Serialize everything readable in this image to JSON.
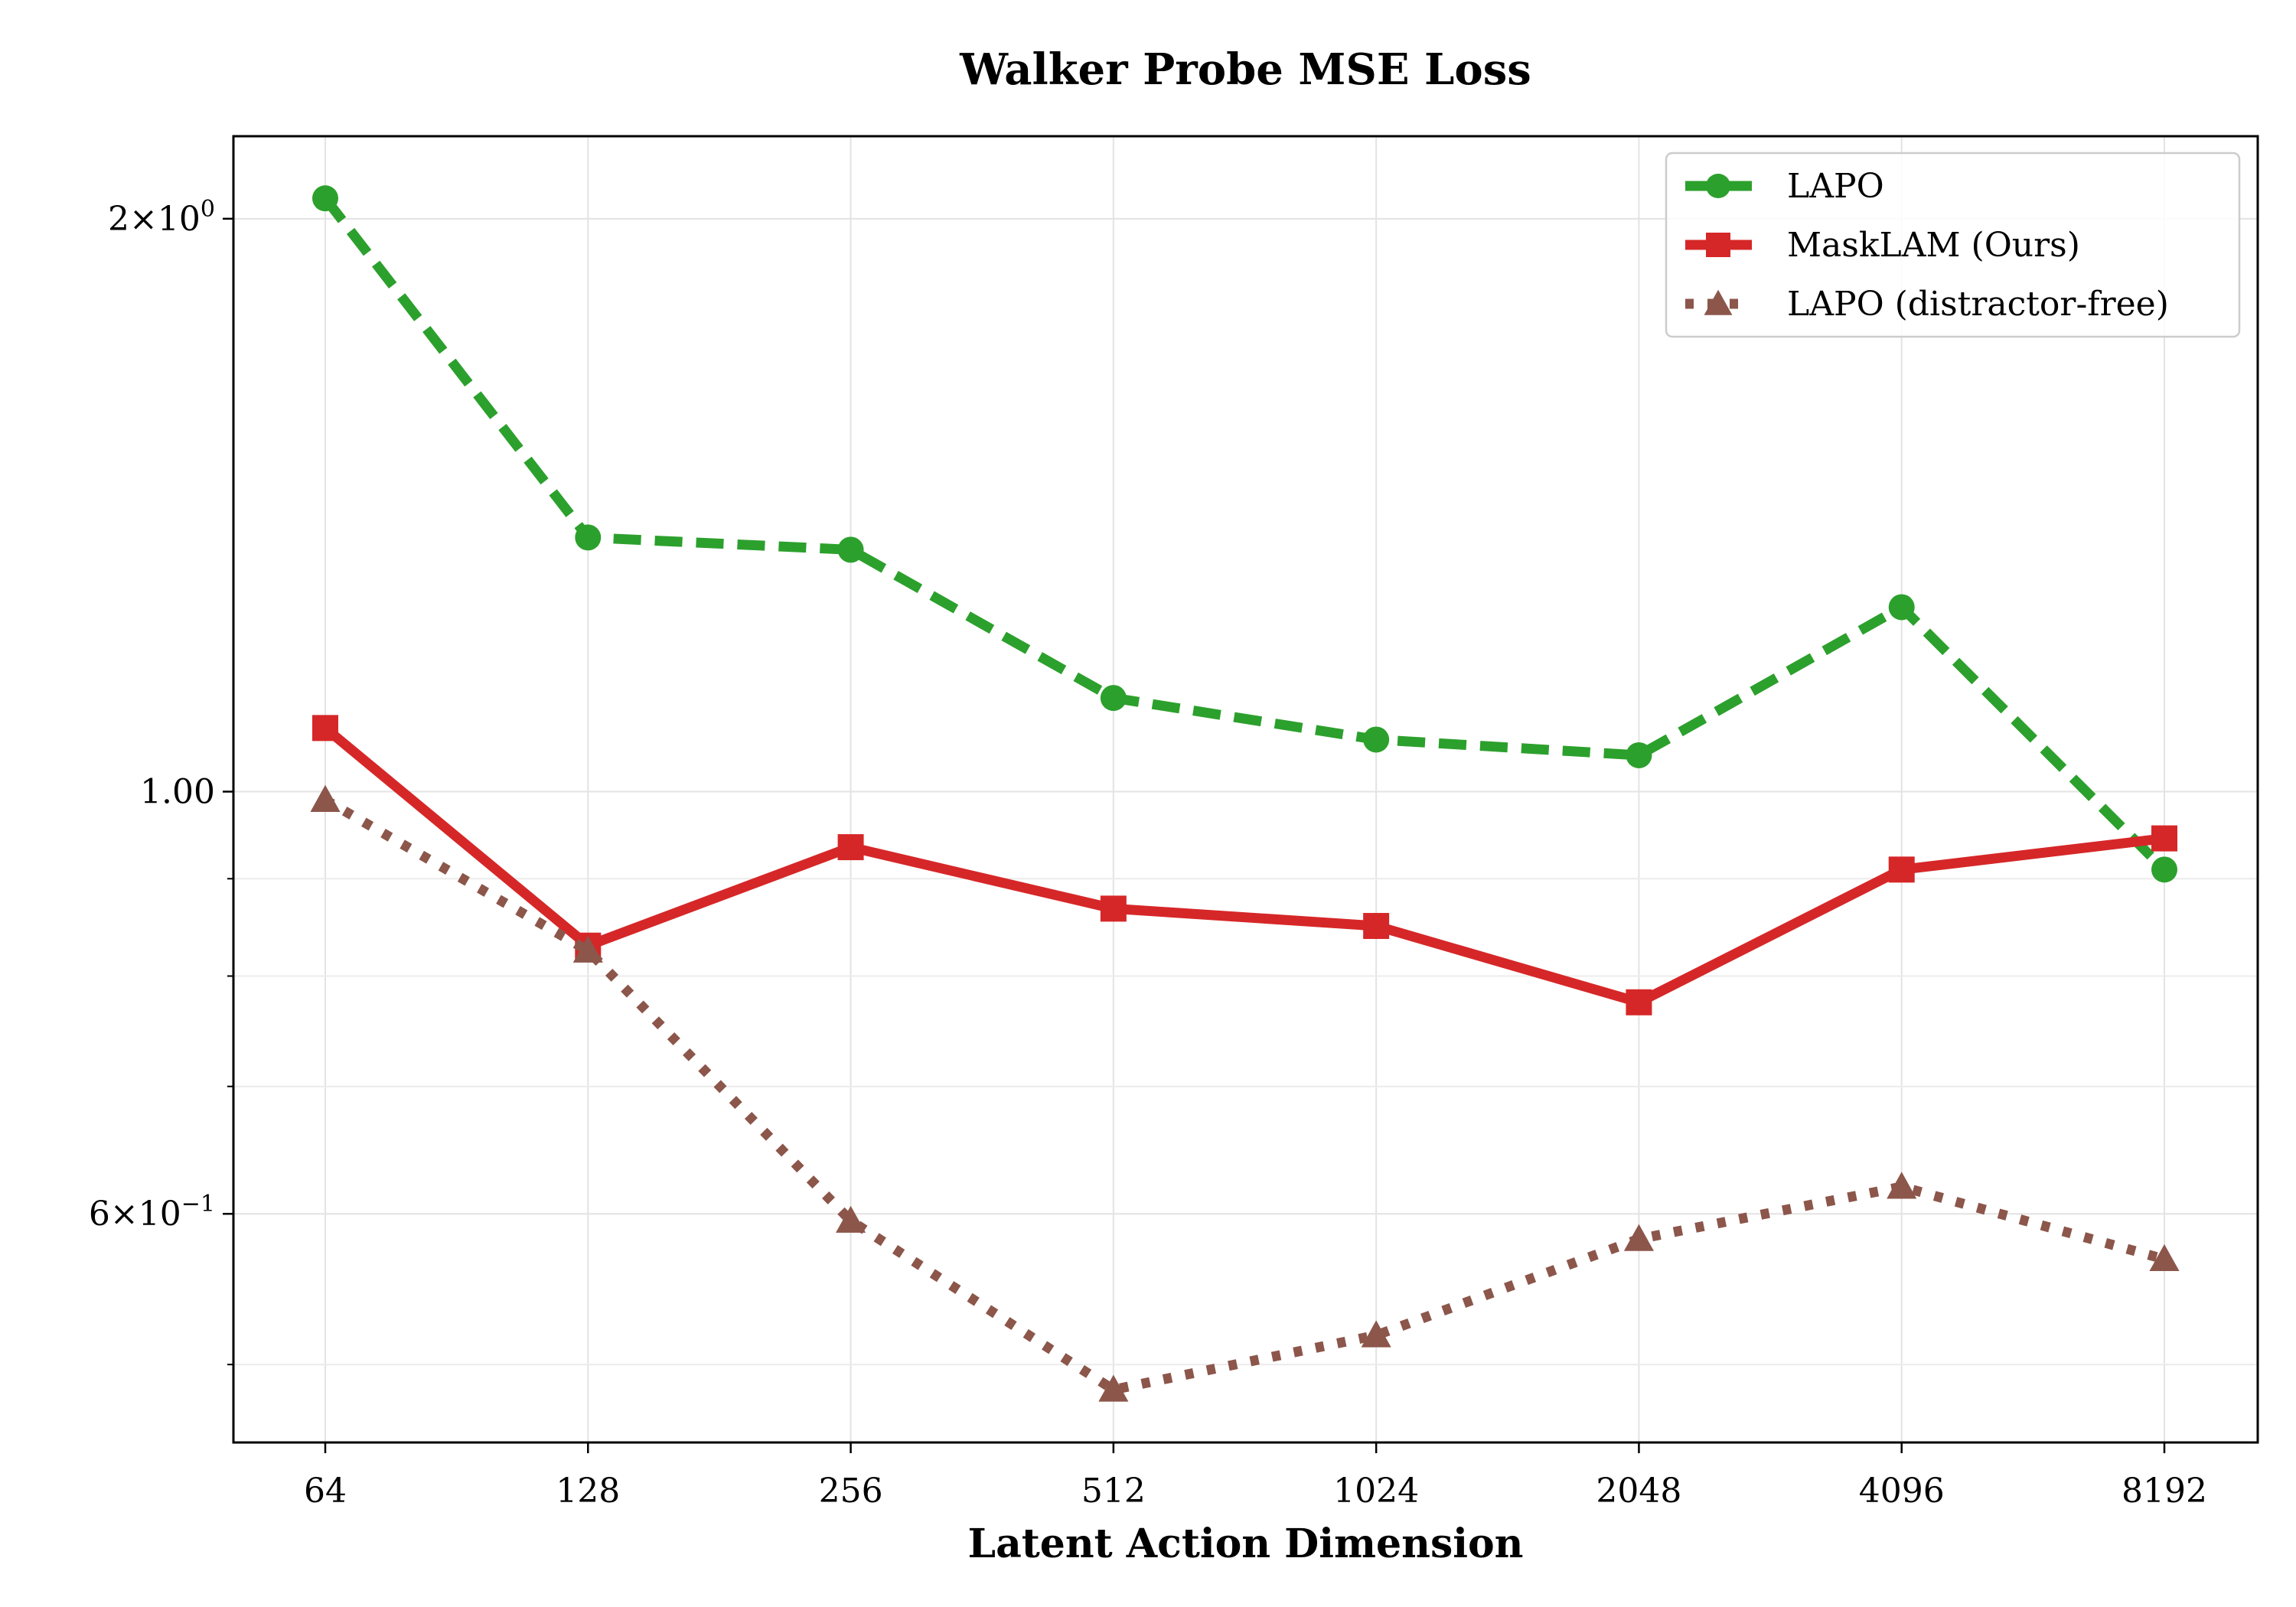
{
  "chart_data": {
    "type": "line",
    "title": "Walker Probe MSE Loss",
    "xlabel": "Latent Action Dimension",
    "ylabel": "",
    "x_scale": "log2",
    "y_scale": "log",
    "categories": [
      "64",
      "128",
      "256",
      "512",
      "1024",
      "2048",
      "4096",
      "8192"
    ],
    "ylim": [
      0.455,
      2.21
    ],
    "y_ticks": [
      {
        "value": 2.0,
        "base": "2",
        "pow": "0",
        "label": ""
      },
      {
        "value": 1.0,
        "base": "",
        "pow": "",
        "label": "1.00"
      },
      {
        "value": 0.6,
        "base": "6",
        "pow": "−1",
        "label": ""
      }
    ],
    "y_minor_ticks": [
      0.5,
      0.7,
      0.8,
      0.9
    ],
    "grid": true,
    "legend_position": "top-right",
    "series": [
      {
        "name": "LAPO",
        "color": "#2ca02c",
        "dash": "dashed",
        "marker": "circle",
        "values": [
          2.05,
          1.36,
          1.34,
          1.12,
          1.065,
          1.045,
          1.25,
          0.91
        ]
      },
      {
        "name": "MaskLAM (Ours)",
        "color": "#d62728",
        "dash": "solid",
        "marker": "square",
        "values": [
          1.08,
          0.83,
          0.935,
          0.868,
          0.85,
          0.775,
          0.91,
          0.945
        ]
      },
      {
        "name": "LAPO (distractor-free)",
        "color": "#8c564b",
        "dash": "dotted",
        "marker": "triangle",
        "values": [
          0.99,
          0.825,
          0.595,
          0.485,
          0.518,
          0.582,
          0.62,
          0.568
        ]
      }
    ]
  }
}
